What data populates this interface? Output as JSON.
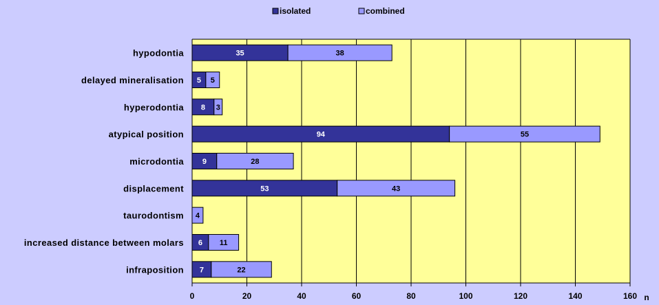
{
  "colors": {
    "background": "#ccccff",
    "plot_area": "#ffff99",
    "isolated": "#333399",
    "combined": "#9999ff",
    "grid": "#000000"
  },
  "chart_data": {
    "type": "bar",
    "orientation": "horizontal",
    "stacked": true,
    "categories": [
      "hypodontia",
      "delayed mineralisation",
      "hyperodontia",
      "atypical position",
      "microdontia",
      "displacement",
      "taurodontism",
      "increased distance between molars",
      "infraposition"
    ],
    "series": [
      {
        "name": "isolated",
        "values": [
          35,
          5,
          8,
          94,
          9,
          53,
          0,
          6,
          7
        ]
      },
      {
        "name": "combined",
        "values": [
          38,
          5,
          3,
          55,
          28,
          43,
          4,
          11,
          22
        ]
      }
    ],
    "data_labels": [
      [
        "35",
        "5",
        "8",
        "94",
        "9",
        "53",
        "",
        "6",
        "7"
      ],
      [
        "38",
        "5",
        "3",
        "55",
        "28",
        "43",
        "4",
        "11",
        "22"
      ]
    ],
    "x_ticks": [
      "0",
      "20",
      "40",
      "60",
      "80",
      "100",
      "120",
      "140",
      "160"
    ],
    "xlim": [
      0,
      160
    ],
    "xlabel": "n",
    "ylabel": "",
    "title": "",
    "grid": "vertical major gridlines",
    "legend_position": "top"
  }
}
